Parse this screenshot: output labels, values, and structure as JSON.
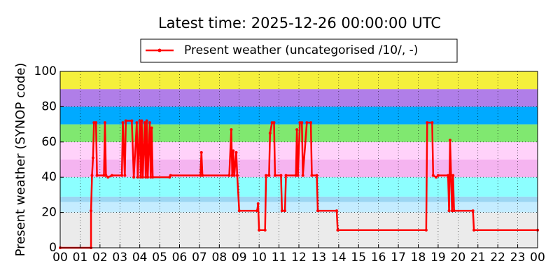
{
  "chart_data": {
    "type": "line",
    "title": "Latest time: 2025-12-26 00:00:00 UTC",
    "y_label": "Present weather (SYNOP code)",
    "xlim": [
      0,
      24
    ],
    "ylim": [
      0,
      100
    ],
    "xticks": [
      {
        "value": 0,
        "label": "00"
      },
      {
        "value": 1,
        "label": "01"
      },
      {
        "value": 2,
        "label": "02"
      },
      {
        "value": 3,
        "label": "03"
      },
      {
        "value": 4,
        "label": "04"
      },
      {
        "value": 5,
        "label": "05"
      },
      {
        "value": 6,
        "label": "06"
      },
      {
        "value": 7,
        "label": "07"
      },
      {
        "value": 8,
        "label": "08"
      },
      {
        "value": 9,
        "label": "09"
      },
      {
        "value": 10,
        "label": "10"
      },
      {
        "value": 11,
        "label": "11"
      },
      {
        "value": 12,
        "label": "12"
      },
      {
        "value": 13,
        "label": "13"
      },
      {
        "value": 14,
        "label": "14"
      },
      {
        "value": 15,
        "label": "15"
      },
      {
        "value": 16,
        "label": "16"
      },
      {
        "value": 17,
        "label": "17"
      },
      {
        "value": 18,
        "label": "18"
      },
      {
        "value": 19,
        "label": "19"
      },
      {
        "value": 20,
        "label": "20"
      },
      {
        "value": 21,
        "label": "21"
      },
      {
        "value": 22,
        "label": "22"
      },
      {
        "value": 23,
        "label": "23"
      },
      {
        "value": 24,
        "label": "00"
      }
    ],
    "yticks": [
      0,
      20,
      40,
      60,
      80,
      100
    ],
    "grid": true,
    "bands": [
      {
        "from": 0,
        "to": 20,
        "color": "#ebebeb"
      },
      {
        "from": 20,
        "to": 26,
        "color": "#c4ecff"
      },
      {
        "from": 26,
        "to": 29,
        "color": "#9cd6f2"
      },
      {
        "from": 29,
        "to": 40,
        "color": "#8cffff"
      },
      {
        "from": 40,
        "to": 50,
        "color": "#f5b4f0"
      },
      {
        "from": 50,
        "to": 60,
        "color": "#ffd2fa"
      },
      {
        "from": 60,
        "to": 70,
        "color": "#80e870"
      },
      {
        "from": 70,
        "to": 80,
        "color": "#00aaff"
      },
      {
        "from": 80,
        "to": 90,
        "color": "#b07ee8"
      },
      {
        "from": 90,
        "to": 100,
        "color": "#f5f03c"
      }
    ],
    "series": [
      {
        "name": "Present weather (uncategorised /10/, -)",
        "color": "#ff0000",
        "x": [
          0,
          1.55,
          1.55,
          1.6,
          1.65,
          1.7,
          1.8,
          1.85,
          2.2,
          2.25,
          2.3,
          2.4,
          2.6,
          3.1,
          3.15,
          3.25,
          3.3,
          3.6,
          3.7,
          3.85,
          3.9,
          4.0,
          4.05,
          4.1,
          4.15,
          4.25,
          4.3,
          4.35,
          4.4,
          4.5,
          4.55,
          4.6,
          4.65,
          5.5,
          5.55,
          7.05,
          7.1,
          7.15,
          8.5,
          8.6,
          8.65,
          8.7,
          8.75,
          8.85,
          8.9,
          9.0,
          9.9,
          9.95,
          10.0,
          10.3,
          10.35,
          10.5,
          10.55,
          10.65,
          10.75,
          10.8,
          11.1,
          11.15,
          11.3,
          11.35,
          11.85,
          11.9,
          11.95,
          12.05,
          12.15,
          12.2,
          12.4,
          12.6,
          12.65,
          12.9,
          12.95,
          13.9,
          13.95,
          18.4,
          18.45,
          18.7,
          18.75,
          18.9,
          19.0,
          19.5,
          19.55,
          19.6,
          19.65,
          19.7,
          19.75,
          19.8,
          20.75,
          20.8,
          24
        ],
        "values": [
          0,
          0,
          21,
          41,
          51,
          71,
          71,
          41,
          41,
          71,
          41,
          40,
          41,
          41,
          71,
          41,
          72,
          72,
          40,
          71,
          40,
          72,
          40,
          72,
          40,
          71,
          40,
          72,
          40,
          71,
          40,
          68,
          40,
          40,
          41,
          41,
          54,
          41,
          41,
          67,
          41,
          55,
          41,
          54,
          41,
          21,
          21,
          25,
          10,
          10,
          41,
          41,
          65,
          71,
          71,
          41,
          41,
          21,
          21,
          41,
          41,
          67,
          41,
          71,
          71,
          41,
          71,
          71,
          41,
          41,
          21,
          21,
          10,
          10,
          71,
          71,
          41,
          40,
          41,
          41,
          21,
          61,
          41,
          21,
          41,
          21,
          21,
          10,
          10
        ]
      }
    ]
  }
}
